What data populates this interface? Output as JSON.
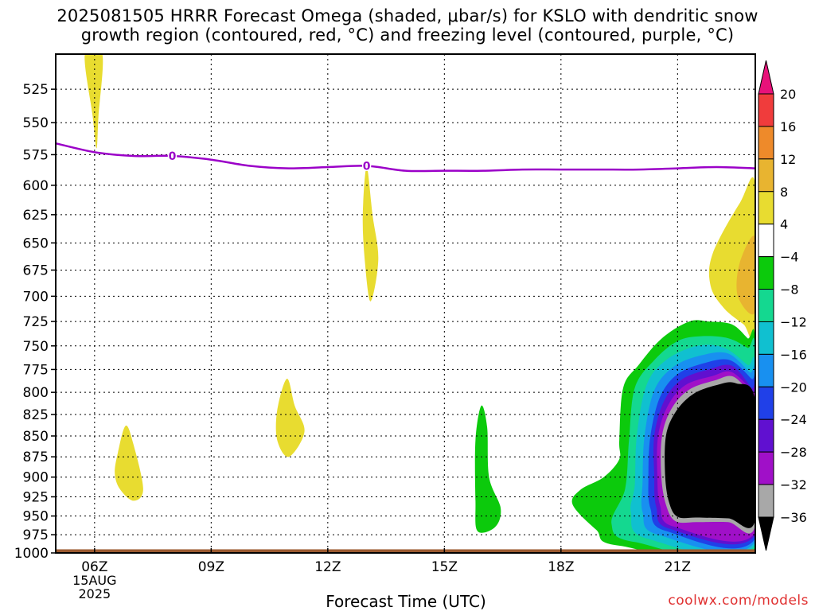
{
  "title": {
    "line1": "2025081505 HRRR Forecast Omega (shaded, μbar/s) for KSLO with dendritic snow",
    "line2": "growth region (contoured, red, °C) and freezing level (contoured, purple, °C)"
  },
  "credit": "coolwx.com/models",
  "chart_data": {
    "type": "heatmap",
    "title": "2025081505 HRRR Forecast Omega (shaded, μbar/s) for KSLO with dendritic snow growth region (contoured, red, °C) and freezing level (contoured, purple, °C)",
    "xlabel": "Forecast Time (UTC)",
    "ylabel": "",
    "x_ticks": [
      {
        "hour": 6,
        "label": "06Z",
        "sublabels": [
          "15AUG",
          "2025"
        ]
      },
      {
        "hour": 9,
        "label": "09Z"
      },
      {
        "hour": 12,
        "label": "12Z"
      },
      {
        "hour": 15,
        "label": "15Z"
      },
      {
        "hour": 18,
        "label": "18Z"
      },
      {
        "hour": 21,
        "label": "21Z"
      }
    ],
    "xlim": [
      5,
      23
    ],
    "y_ticks": [
      525,
      550,
      575,
      600,
      625,
      650,
      675,
      700,
      725,
      750,
      775,
      800,
      825,
      850,
      875,
      900,
      925,
      950,
      975,
      1000
    ],
    "ylim": [
      500,
      1000
    ],
    "y_scale": "log-pressure",
    "grid": true,
    "colorbar": {
      "labels": [
        "20",
        "16",
        "12",
        "8",
        "4",
        "−4",
        "−8",
        "−12",
        "−16",
        "−20",
        "−24",
        "−28",
        "−32",
        "−36"
      ],
      "bins": [
        {
          "range": "> 20",
          "color": "#e8127a"
        },
        {
          "range": "16 to 20",
          "color": "#f03c3c"
        },
        {
          "range": "12 to 16",
          "color": "#ee8a2a"
        },
        {
          "range": "8 to 12",
          "color": "#e8b430"
        },
        {
          "range": "4 to 8",
          "color": "#e8dc30"
        },
        {
          "range": "-4 to 4",
          "color": "#ffffff"
        },
        {
          "range": "-8 to -4",
          "color": "#0cca0c"
        },
        {
          "range": "-12 to -8",
          "color": "#14d890"
        },
        {
          "range": "-16 to -12",
          "color": "#10c0d0"
        },
        {
          "range": "-20 to -16",
          "color": "#1890f0"
        },
        {
          "range": "-24 to -20",
          "color": "#2040e8"
        },
        {
          "range": "-28 to -24",
          "color": "#6010d0"
        },
        {
          "range": "-32 to -28",
          "color": "#a010c8"
        },
        {
          "range": "-36 to -32",
          "color": "#a8a8a8"
        },
        {
          "range": "< -36",
          "color": "#000000"
        }
      ]
    },
    "freezing_level": {
      "label": "0",
      "color": "#9b00c8",
      "points": [
        [
          5,
          566
        ],
        [
          6,
          573
        ],
        [
          7,
          576
        ],
        [
          8,
          576
        ],
        [
          9,
          579
        ],
        [
          10,
          584
        ],
        [
          11,
          586
        ],
        [
          12,
          585
        ],
        [
          13,
          584
        ],
        [
          14,
          588
        ],
        [
          15,
          588
        ],
        [
          16,
          588
        ],
        [
          17,
          587
        ],
        [
          18,
          587
        ],
        [
          19,
          587
        ],
        [
          20,
          587
        ],
        [
          21,
          586
        ],
        [
          22,
          585
        ],
        [
          23,
          586
        ]
      ]
    },
    "surface_color": "#9b5a30",
    "regions": [
      {
        "color": "#e8dc30",
        "points": [
          [
            5.75,
            500
          ],
          [
            6.2,
            500
          ],
          [
            6.1,
            545
          ],
          [
            6.05,
            570
          ],
          [
            5.95,
            545
          ]
        ]
      },
      {
        "color": "#e8dc30",
        "points": [
          [
            13.0,
            585
          ],
          [
            13.15,
            625
          ],
          [
            13.3,
            665
          ],
          [
            13.1,
            705
          ],
          [
            12.95,
            665
          ],
          [
            12.9,
            625
          ]
        ]
      },
      {
        "color": "#e8dc30",
        "points": [
          [
            6.6,
            870
          ],
          [
            6.8,
            838
          ],
          [
            7.0,
            860
          ],
          [
            7.25,
            915
          ],
          [
            7.0,
            930
          ],
          [
            6.65,
            915
          ],
          [
            6.52,
            895
          ]
        ]
      },
      {
        "color": "#e8dc30",
        "points": [
          [
            10.7,
            820
          ],
          [
            10.95,
            785
          ],
          [
            11.15,
            815
          ],
          [
            11.4,
            845
          ],
          [
            11.0,
            875
          ],
          [
            10.7,
            855
          ]
        ]
      },
      {
        "color": "#0cca0c",
        "points": [
          [
            15.8,
            855
          ],
          [
            15.95,
            815
          ],
          [
            16.1,
            840
          ],
          [
            16.15,
            900
          ],
          [
            16.45,
            940
          ],
          [
            16.3,
            965
          ],
          [
            15.85,
            970
          ],
          [
            15.8,
            930
          ]
        ]
      },
      {
        "color": "#e8dc30",
        "points": [
          [
            23,
            600
          ],
          [
            22.6,
            615
          ],
          [
            21.9,
            660
          ],
          [
            21.85,
            690
          ],
          [
            22.2,
            712
          ],
          [
            22.7,
            728
          ],
          [
            23,
            738
          ]
        ]
      },
      {
        "color": "#e8b430",
        "points": [
          [
            23,
            645
          ],
          [
            22.6,
            668
          ],
          [
            22.55,
            700
          ],
          [
            23,
            715
          ]
        ]
      },
      {
        "color": "#0cca0c",
        "points": [
          [
            19.5,
            855
          ],
          [
            19.6,
            795
          ],
          [
            20.0,
            770
          ],
          [
            20.6,
            742
          ],
          [
            21.3,
            725
          ],
          [
            21.8,
            725
          ],
          [
            22.4,
            728
          ],
          [
            22.8,
            742
          ],
          [
            23,
            750
          ],
          [
            23,
            995
          ],
          [
            19.5,
            990
          ],
          [
            18.9,
            968
          ],
          [
            18.3,
            935
          ],
          [
            18.5,
            916
          ],
          [
            19.1,
            900
          ],
          [
            19.5,
            878
          ]
        ]
      },
      {
        "color": "#14d890",
        "points": [
          [
            19.75,
            855
          ],
          [
            19.9,
            795
          ],
          [
            20.4,
            765
          ],
          [
            21.0,
            745
          ],
          [
            21.6,
            740
          ],
          [
            22.3,
            742
          ],
          [
            22.8,
            752
          ],
          [
            23,
            758
          ],
          [
            23,
            992
          ],
          [
            19.9,
            985
          ],
          [
            19.3,
            960
          ],
          [
            19.65,
            915
          ]
        ]
      },
      {
        "color": "#10c0d0",
        "points": [
          [
            19.95,
            850
          ],
          [
            20.2,
            792
          ],
          [
            20.7,
            765
          ],
          [
            21.5,
            750
          ],
          [
            22.2,
            752
          ],
          [
            22.8,
            770
          ],
          [
            23,
            776
          ],
          [
            23,
            988
          ],
          [
            20.2,
            980
          ],
          [
            19.8,
            945
          ],
          [
            19.9,
            910
          ]
        ]
      },
      {
        "color": "#1890f0",
        "points": [
          [
            20.15,
            850
          ],
          [
            20.4,
            798
          ],
          [
            20.9,
            772
          ],
          [
            21.6,
            760
          ],
          [
            22.3,
            758
          ],
          [
            22.85,
            778
          ],
          [
            23,
            785
          ],
          [
            23,
            984
          ],
          [
            20.5,
            975
          ],
          [
            20.1,
            945
          ],
          [
            20.1,
            905
          ]
        ]
      },
      {
        "color": "#2040e8",
        "points": [
          [
            20.3,
            850
          ],
          [
            20.55,
            805
          ],
          [
            21.0,
            780
          ],
          [
            21.7,
            768
          ],
          [
            22.35,
            765
          ],
          [
            22.9,
            785
          ],
          [
            23,
            792
          ],
          [
            23,
            980
          ],
          [
            20.7,
            970
          ],
          [
            20.3,
            940
          ],
          [
            20.25,
            900
          ]
        ]
      },
      {
        "color": "#6010d0",
        "points": [
          [
            20.4,
            850
          ],
          [
            20.65,
            810
          ],
          [
            21.1,
            786
          ],
          [
            21.8,
            775
          ],
          [
            22.4,
            771
          ],
          [
            22.9,
            795
          ],
          [
            23,
            800
          ],
          [
            23,
            975
          ],
          [
            20.8,
            967
          ],
          [
            20.45,
            938
          ],
          [
            20.4,
            898
          ]
        ]
      },
      {
        "color": "#a010c8",
        "points": [
          [
            20.5,
            850
          ],
          [
            20.75,
            815
          ],
          [
            21.2,
            792
          ],
          [
            21.9,
            782
          ],
          [
            22.4,
            778
          ],
          [
            22.95,
            800
          ],
          [
            23,
            804
          ],
          [
            23,
            972
          ],
          [
            20.9,
            964
          ],
          [
            20.55,
            936
          ],
          [
            20.48,
            898
          ]
        ]
      },
      {
        "color": "#a8a8a8",
        "points": [
          [
            20.6,
            850
          ],
          [
            20.85,
            818
          ],
          [
            21.3,
            797
          ],
          [
            21.95,
            787
          ],
          [
            22.45,
            783
          ],
          [
            22.95,
            806
          ],
          [
            23,
            808
          ],
          [
            23,
            962
          ],
          [
            22.3,
            958
          ],
          [
            21.5,
            958
          ],
          [
            20.95,
            957
          ],
          [
            20.7,
            935
          ],
          [
            20.58,
            898
          ]
        ]
      },
      {
        "color": "#000000",
        "points": [
          [
            20.7,
            850
          ],
          [
            20.95,
            822
          ],
          [
            21.4,
            802
          ],
          [
            22.0,
            792
          ],
          [
            22.5,
            790
          ],
          [
            23,
            810
          ],
          [
            23,
            955
          ],
          [
            22.3,
            953
          ],
          [
            21.5,
            952
          ],
          [
            21.0,
            951
          ],
          [
            20.78,
            932
          ],
          [
            20.68,
            898
          ]
        ]
      }
    ]
  }
}
